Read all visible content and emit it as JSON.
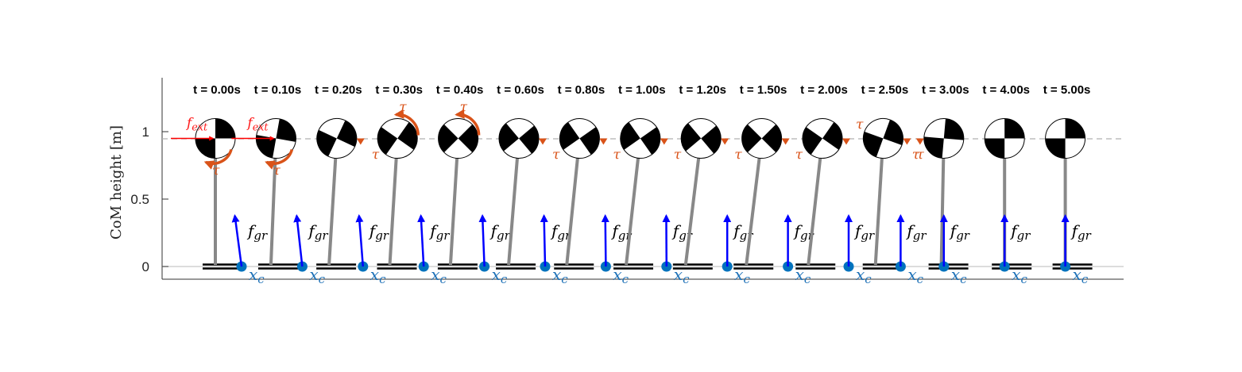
{
  "figure": {
    "ylabel": "CoM height [m]",
    "y_ticks": [
      "0",
      "0.5",
      "1"
    ],
    "labels": {
      "f_gr": "f",
      "f_gr_sub": "gr",
      "x_c": "x",
      "x_c_sub": "c",
      "tau": "τ",
      "f_ext": "f",
      "f_ext_sub": "ext"
    },
    "colors": {
      "leg": "#888888",
      "force": "#0000ff",
      "cop": "#0072bd",
      "torque": "#d95319",
      "external": "#ff0000",
      "reference": "#b0b0b0"
    }
  },
  "chart_data": {
    "type": "scatter",
    "ylabel": "CoM height [m]",
    "ylim": [
      0,
      1.4
    ],
    "com_height": 0.95,
    "frames": [
      {
        "time": "t = 0.00s",
        "lean": 0.0,
        "force_tilt": 0.24,
        "disc_rot": 0,
        "torque": "cw-below",
        "fext": true
      },
      {
        "time": "t = 0.10s",
        "lean": 0.04,
        "force_tilt": 0.2,
        "disc_rot": 10,
        "torque": "cw-below",
        "fext": true
      },
      {
        "time": "t = 0.20s",
        "lean": 0.06,
        "force_tilt": 0.14,
        "disc_rot": 25,
        "torque": "right-below",
        "fext": false
      },
      {
        "time": "t = 0.30s",
        "lean": 0.06,
        "force_tilt": 0.1,
        "disc_rot": 35,
        "torque": "ccw-above",
        "fext": false
      },
      {
        "time": "t = 0.40s",
        "lean": 0.06,
        "force_tilt": 0.07,
        "disc_rot": 45,
        "torque": "ccw-above",
        "fext": false
      },
      {
        "time": "t = 0.60s",
        "lean": 0.08,
        "force_tilt": 0.04,
        "disc_rot": 50,
        "torque": "right-below",
        "fext": false
      },
      {
        "time": "t = 0.80s",
        "lean": 0.1,
        "force_tilt": 0.02,
        "disc_rot": 55,
        "torque": "right-below",
        "fext": false
      },
      {
        "time": "t = 1.00s",
        "lean": 0.11,
        "force_tilt": 0.01,
        "disc_rot": 55,
        "torque": "right-below",
        "fext": false
      },
      {
        "time": "t = 1.20s",
        "lean": 0.12,
        "force_tilt": 0.0,
        "disc_rot": 50,
        "torque": "right-below",
        "fext": false
      },
      {
        "time": "t = 1.50s",
        "lean": 0.12,
        "force_tilt": 0.0,
        "disc_rot": 45,
        "torque": "right-below",
        "fext": false
      },
      {
        "time": "t = 2.00s",
        "lean": 0.11,
        "force_tilt": 0.0,
        "disc_rot": 35,
        "torque": "right-above",
        "fext": false
      },
      {
        "time": "t = 2.50s",
        "lean": 0.06,
        "force_tilt": 0.0,
        "disc_rot": 20,
        "torque": "right-below",
        "fext": false
      },
      {
        "time": "t = 3.00s",
        "lean": 0.02,
        "force_tilt": 0.0,
        "disc_rot": 5,
        "torque": "left-below",
        "fext": false
      },
      {
        "time": "t = 4.00s",
        "lean": 0.0,
        "force_tilt": 0.0,
        "disc_rot": 0,
        "torque": "none",
        "fext": false
      },
      {
        "time": "t = 5.00s",
        "lean": 0.0,
        "force_tilt": 0.0,
        "disc_rot": 0,
        "torque": "none",
        "fext": false
      }
    ]
  }
}
